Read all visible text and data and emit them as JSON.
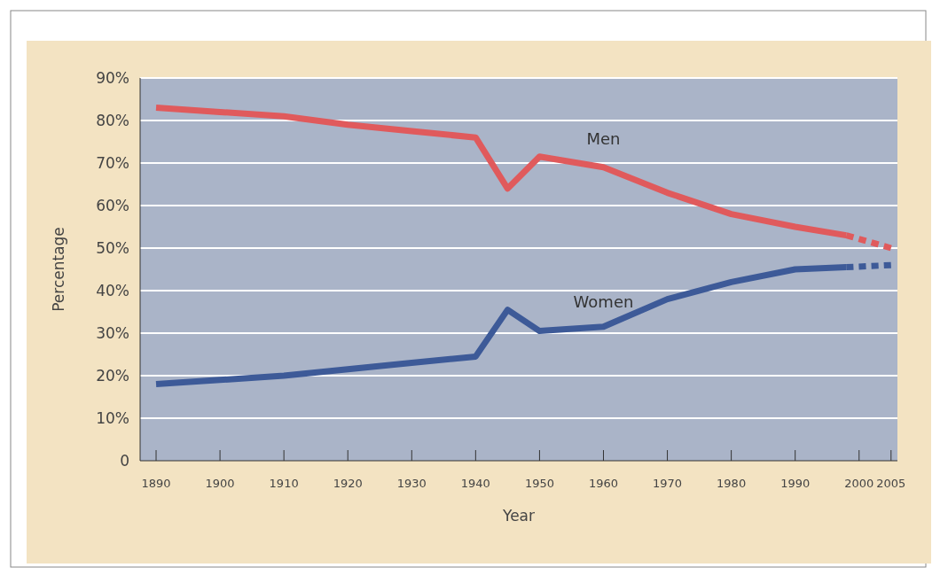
{
  "chart_data": {
    "type": "line",
    "xlabel": "Year",
    "ylabel": "Percentage",
    "xlim": [
      1887.5,
      2006
    ],
    "ylim": [
      0,
      90
    ],
    "xticks": [
      1890,
      1900,
      1910,
      1920,
      1930,
      1940,
      1950,
      1960,
      1970,
      1980,
      1990,
      2000,
      2005
    ],
    "yticks": [
      0,
      {
        "value": 10,
        "label": "10%"
      },
      {
        "value": 20,
        "label": "20%"
      },
      {
        "value": 30,
        "label": "30%"
      },
      {
        "value": 40,
        "label": "40%"
      },
      {
        "value": 50,
        "label": "50%"
      },
      {
        "value": 60,
        "label": "60%"
      },
      {
        "value": 70,
        "label": "70%"
      },
      {
        "value": 80,
        "label": "80%"
      },
      {
        "value": 90,
        "label": "90%"
      }
    ],
    "grid": "y",
    "marker": "none",
    "series": [
      {
        "name": "Men",
        "color": "#e05a5c",
        "line_style": "solid",
        "x": [
          1890,
          1900,
          1910,
          1920,
          1930,
          1940,
          1945,
          1950,
          1960,
          1970,
          1980,
          1990,
          1998
        ],
        "values": [
          83,
          82,
          81,
          79,
          77.5,
          76,
          64,
          71.5,
          69,
          63,
          58,
          55,
          53
        ]
      },
      {
        "name": "Women",
        "color": "#3d5a98",
        "line_style": "solid",
        "x": [
          1890,
          1900,
          1910,
          1920,
          1930,
          1940,
          1945,
          1950,
          1960,
          1970,
          1980,
          1990,
          1998
        ],
        "values": [
          18,
          19,
          20,
          21.5,
          23,
          24.5,
          35.5,
          30.5,
          31.5,
          38,
          42,
          45,
          45.5
        ]
      },
      {
        "color": "#e05a5c",
        "line_style": "dashed",
        "x": [
          1998,
          2005
        ],
        "values": [
          53,
          50
        ]
      },
      {
        "color": "#3d5a98",
        "line_style": "dashed",
        "x": [
          1998,
          2005
        ],
        "values": [
          45.5,
          46
        ]
      }
    ]
  }
}
